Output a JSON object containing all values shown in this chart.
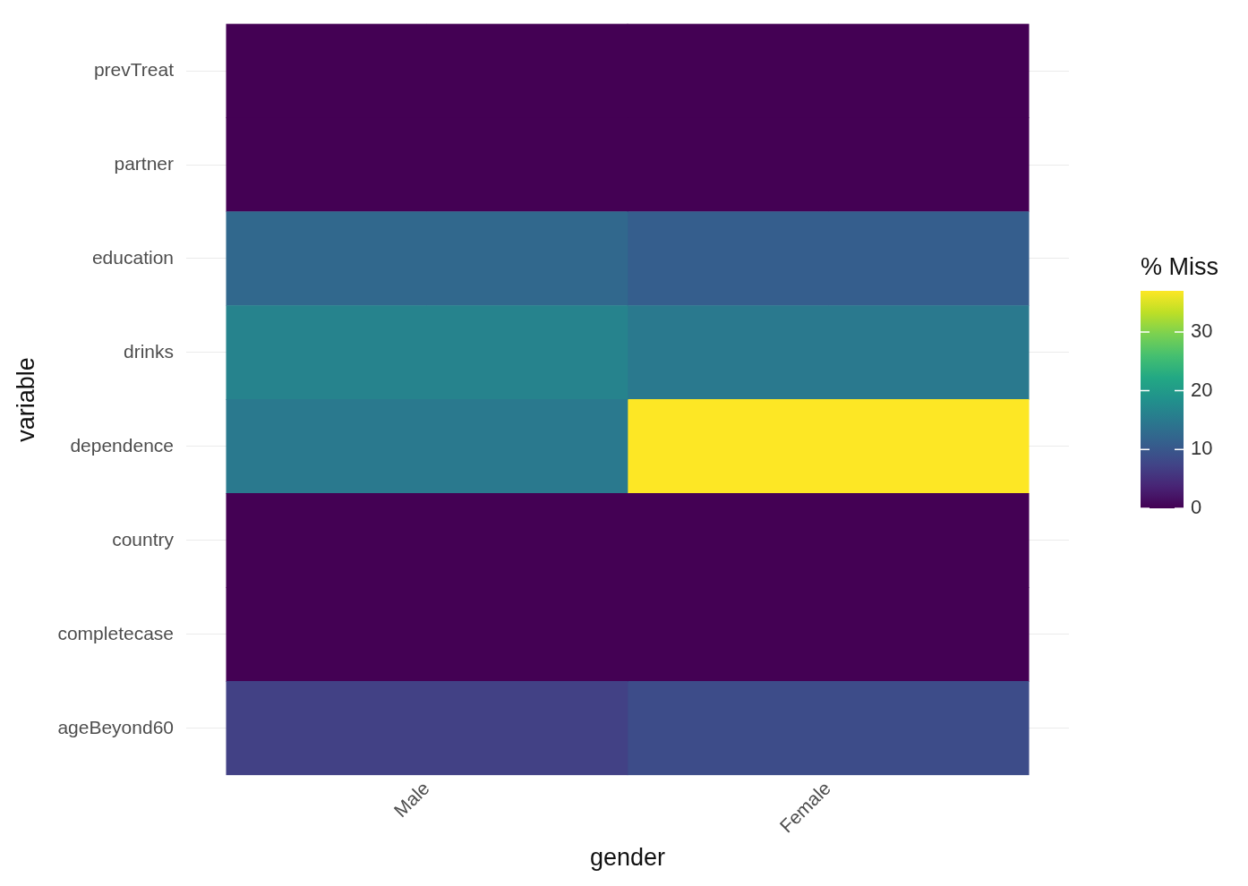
{
  "chart_data": {
    "type": "heatmap",
    "xlabel": "gender",
    "ylabel": "variable",
    "clabel": "% Miss",
    "categories": [
      "Male",
      "Female"
    ],
    "y_categories": [
      "prevTreat",
      "partner",
      "education",
      "drinks",
      "dependence",
      "country",
      "completecase",
      "ageBeyond60"
    ],
    "cells": [
      [
        0,
        0
      ],
      [
        0,
        0
      ],
      [
        12.5,
        11
      ],
      [
        16.5,
        15
      ],
      [
        15,
        37
      ],
      [
        0,
        0
      ],
      [
        0,
        0
      ],
      [
        7,
        8.5
      ]
    ],
    "clim": [
      0,
      37
    ],
    "cticks": [
      0,
      10,
      20,
      30
    ],
    "grid": true
  }
}
